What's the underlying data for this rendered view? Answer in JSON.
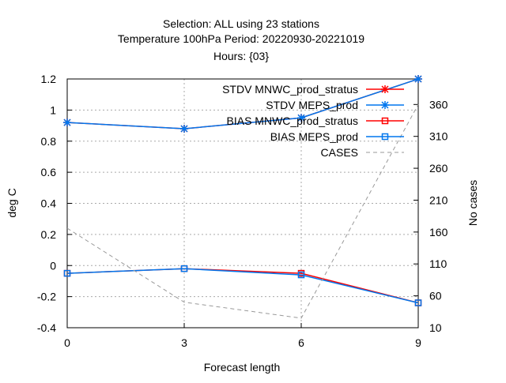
{
  "chart_data": {
    "type": "line",
    "title_lines": [
      "Selection: ALL using    23 stations",
      "Temperature 100hPa   Period: 20220930-20221019",
      "Hours: {03}"
    ],
    "xlabel": "Forecast length",
    "ylabel": "deg C",
    "y2label": "No cases",
    "x": [
      0,
      3,
      6,
      9
    ],
    "xlim": [
      0,
      9
    ],
    "ylim": [
      -0.4,
      1.2
    ],
    "y2lim": [
      10,
      400
    ],
    "x_ticks": [
      "0",
      "3",
      "6",
      "9"
    ],
    "y_ticks": [
      "-0.4",
      "-0.2",
      "0",
      "0.2",
      "0.4",
      "0.6",
      "0.8",
      "1",
      "1.2"
    ],
    "y2_ticks": [
      "10",
      "60",
      "110",
      "160",
      "210",
      "260",
      "310",
      "360"
    ],
    "grid": true,
    "legend_position": "top-right",
    "series": [
      {
        "name": "STDV MNWC_prod_stratus",
        "axis": "y",
        "color": "#ff0000",
        "marker": "star",
        "dash": "solid",
        "values": [
          0.92,
          0.88,
          0.95,
          1.2
        ]
      },
      {
        "name": "STDV MEPS_prod",
        "axis": "y",
        "color": "#0077ee",
        "marker": "star",
        "dash": "solid",
        "values": [
          0.92,
          0.88,
          0.95,
          1.2
        ]
      },
      {
        "name": "BIAS MNWC_prod_stratus",
        "axis": "y",
        "color": "#ff0000",
        "marker": "square",
        "dash": "solid",
        "values": [
          -0.05,
          -0.02,
          -0.05,
          -0.24
        ]
      },
      {
        "name": "BIAS MEPS_prod",
        "axis": "y",
        "color": "#0077ee",
        "marker": "square",
        "dash": "solid",
        "values": [
          -0.05,
          -0.02,
          -0.06,
          -0.24
        ]
      },
      {
        "name": "CASES",
        "axis": "y2",
        "color": "#999999",
        "marker": "none",
        "dash": "dashed",
        "values": [
          166,
          50,
          25,
          360
        ]
      }
    ]
  }
}
